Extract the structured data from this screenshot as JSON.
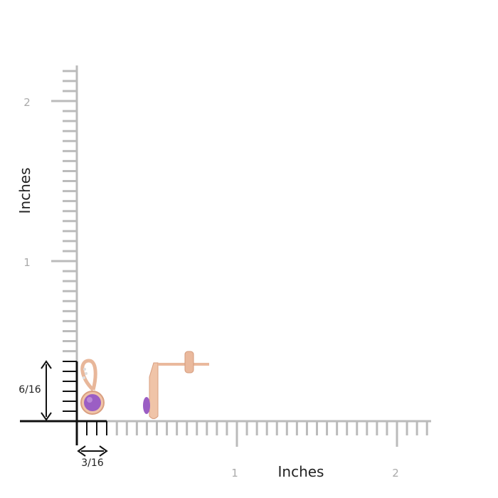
{
  "y_axis": {
    "label": "Inches",
    "ticks": [
      "1",
      "2"
    ]
  },
  "x_axis": {
    "label": "Inches",
    "ticks": [
      "1",
      "2"
    ]
  },
  "dimensions": {
    "height": "6/16",
    "width": "3/16"
  }
}
